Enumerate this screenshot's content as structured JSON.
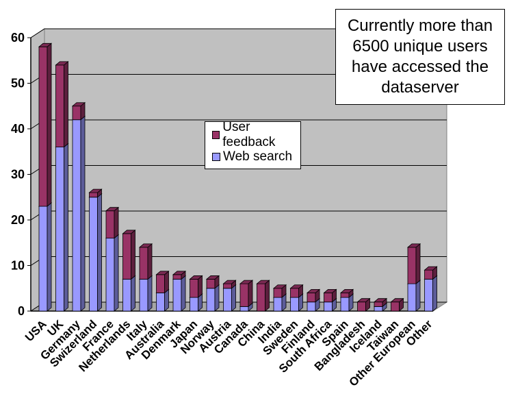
{
  "chart_data": {
    "type": "bar",
    "stacked": true,
    "categories": [
      "USA",
      "UK",
      "Germany",
      "Swizerland",
      "France",
      "Netherlands",
      "Italy",
      "Australia",
      "Denmark",
      "Japan",
      "Norway",
      "Austria",
      "Canada",
      "China",
      "India",
      "Sweden",
      "Finland",
      "South Africa",
      "Spain",
      "Bangladesh",
      "Iceland",
      "Taiwan",
      "Other European",
      "Other"
    ],
    "series": [
      {
        "name": "Web search",
        "color": "#9999ff",
        "values": [
          23,
          36,
          42,
          25,
          16,
          7,
          7,
          4,
          7,
          3,
          5,
          5,
          1,
          0,
          3,
          3,
          2,
          2,
          3,
          0,
          1,
          0,
          6,
          7
        ]
      },
      {
        "name": "User feedback",
        "color": "#993366",
        "values": [
          35,
          18,
          3,
          1,
          6,
          10,
          7,
          4,
          1,
          4,
          2,
          1,
          5,
          6,
          2,
          2,
          2,
          2,
          1,
          2,
          1,
          2,
          8,
          2
        ]
      }
    ],
    "y_ticks": [
      "0",
      "10",
      "20",
      "30",
      "40",
      "50",
      "60"
    ],
    "ylim": [
      0,
      60
    ],
    "grid": true,
    "legend_position": "center",
    "title": "",
    "xlabel": "",
    "ylabel": ""
  },
  "annotation": {
    "text": "Currently more than 6500 unique users have accessed the dataserver"
  },
  "legend": {
    "items": [
      {
        "label": "User feedback",
        "color": "#993366"
      },
      {
        "label": "Web search",
        "color": "#9999ff"
      }
    ]
  }
}
